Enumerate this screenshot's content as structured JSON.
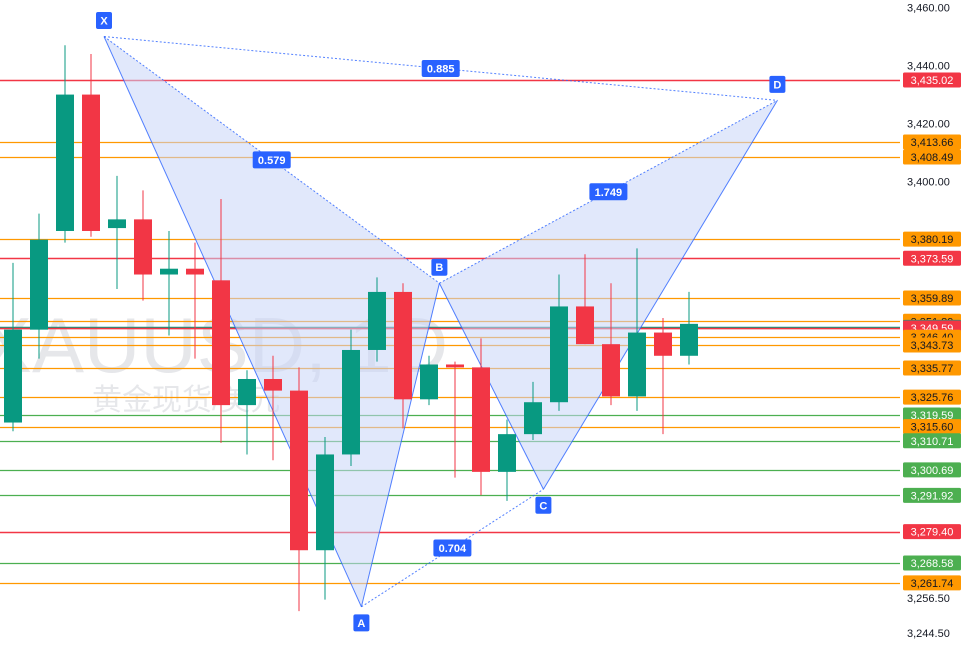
{
  "chart_data": {
    "type": "candlestick",
    "watermark": {
      "symbol": "XAUUSD, 1D",
      "name": "黄金现货/美元"
    },
    "y_axis": {
      "min": 3240,
      "max": 3465,
      "ticks": [
        "3,460.00",
        "3,440.00",
        "3,420.00",
        "3,400.00",
        "3,256.50",
        "3,244.50"
      ],
      "tick_values": [
        3460,
        3440,
        3420,
        3400,
        3256.5,
        3244.5
      ]
    },
    "candles": [
      {
        "o": 3317,
        "h": 3372,
        "l": 3314,
        "c": 3349
      },
      {
        "o": 3349,
        "h": 3389,
        "l": 3339,
        "c": 3380
      },
      {
        "o": 3383,
        "h": 3447,
        "l": 3379,
        "c": 3430
      },
      {
        "o": 3430,
        "h": 3444,
        "l": 3381,
        "c": 3383
      },
      {
        "o": 3384,
        "h": 3402,
        "l": 3363,
        "c": 3387
      },
      {
        "o": 3387,
        "h": 3397,
        "l": 3359,
        "c": 3368
      },
      {
        "o": 3368,
        "h": 3383,
        "l": 3347,
        "c": 3370
      },
      {
        "o": 3370,
        "h": 3379,
        "l": 3339,
        "c": 3368
      },
      {
        "o": 3366,
        "h": 3394,
        "l": 3310,
        "c": 3323
      },
      {
        "o": 3323,
        "h": 3335,
        "l": 3306,
        "c": 3332
      },
      {
        "o": 3332,
        "h": 3340,
        "l": 3304,
        "c": 3328
      },
      {
        "o": 3328,
        "h": 3336,
        "l": 3252,
        "c": 3273
      },
      {
        "o": 3273,
        "h": 3312,
        "l": 3256,
        "c": 3306
      },
      {
        "o": 3306,
        "h": 3349,
        "l": 3302,
        "c": 3342
      },
      {
        "o": 3342,
        "h": 3367,
        "l": 3338,
        "c": 3362
      },
      {
        "o": 3362,
        "h": 3365,
        "l": 3315,
        "c": 3325
      },
      {
        "o": 3325,
        "h": 3340,
        "l": 3323,
        "c": 3337
      },
      {
        "o": 3337,
        "h": 3338,
        "l": 3298,
        "c": 3336
      },
      {
        "o": 3336,
        "h": 3346,
        "l": 3292,
        "c": 3300
      },
      {
        "o": 3300,
        "h": 3318,
        "l": 3290,
        "c": 3313
      },
      {
        "o": 3313,
        "h": 3331,
        "l": 3311,
        "c": 3324
      },
      {
        "o": 3324,
        "h": 3368,
        "l": 3321,
        "c": 3357
      },
      {
        "o": 3357,
        "h": 3375,
        "l": 3344,
        "c": 3344
      },
      {
        "o": 3344,
        "h": 3365,
        "l": 3323,
        "c": 3326
      },
      {
        "o": 3326,
        "h": 3377,
        "l": 3321,
        "c": 3348
      },
      {
        "o": 3348,
        "h": 3353,
        "l": 3313,
        "c": 3340
      },
      {
        "o": 3340,
        "h": 3362,
        "l": 3337,
        "c": 3351
      }
    ],
    "price_lines": [
      {
        "value": 3435.02,
        "label": "3,435.02",
        "color": "#f23645",
        "kind": "red"
      },
      {
        "value": 3413.66,
        "label": "3,413.66",
        "color": "#ff9800",
        "kind": "orange"
      },
      {
        "value": 3408.49,
        "label": "3,408.49",
        "color": "#ff9800",
        "kind": "orange"
      },
      {
        "value": 3380.19,
        "label": "3,380.19",
        "color": "#ff9800",
        "kind": "orange"
      },
      {
        "value": 3373.59,
        "label": "3,373.59",
        "color": "#f23645",
        "kind": "red"
      },
      {
        "value": 3359.89,
        "label": "3,359.89",
        "color": "#ff9800",
        "kind": "orange"
      },
      {
        "value": 3351.89,
        "label": "3,351.89",
        "color": "#ff9800",
        "kind": "orange"
      },
      {
        "value": 3349.78,
        "label": "3,349.78",
        "color": "#089981",
        "kind": "current"
      },
      {
        "value": 3349.59,
        "label": "3,349.59",
        "color": "#f23645",
        "kind": "red"
      },
      {
        "value": 3346.4,
        "label": "3,346.40",
        "color": "#ff9800",
        "kind": "orange"
      },
      {
        "value": 3343.73,
        "label": "3,343.73",
        "color": "#ff9800",
        "kind": "orange"
      },
      {
        "value": 3335.77,
        "label": "3,335.77",
        "color": "#ff9800",
        "kind": "orange"
      },
      {
        "value": 3325.76,
        "label": "3,325.76",
        "color": "#ff9800",
        "kind": "orange"
      },
      {
        "value": 3319.59,
        "label": "3,319.59",
        "color": "#4caf50",
        "kind": "green"
      },
      {
        "value": 3315.6,
        "label": "3,315.60",
        "color": "#ff9800",
        "kind": "orange"
      },
      {
        "value": 3310.71,
        "label": "3,310.71",
        "color": "#4caf50",
        "kind": "green"
      },
      {
        "value": 3300.69,
        "label": "3,300.69",
        "color": "#4caf50",
        "kind": "green"
      },
      {
        "value": 3291.92,
        "label": "3,291.92",
        "color": "#4caf50",
        "kind": "green"
      },
      {
        "value": 3279.4,
        "label": "3,279.40",
        "color": "#f23645",
        "kind": "red"
      },
      {
        "value": 3268.58,
        "label": "3,268.58",
        "color": "#4caf50",
        "kind": "green"
      },
      {
        "value": 3261.74,
        "label": "3,261.74",
        "color": "#ff9800",
        "kind": "orange"
      }
    ],
    "harmonic_pattern": {
      "points": [
        {
          "label": "X",
          "bar": 3.5,
          "price": 3450,
          "pos": "above"
        },
        {
          "label": "A",
          "bar": 13.4,
          "price": 3253.5,
          "pos": "below"
        },
        {
          "label": "B",
          "bar": 16.4,
          "price": 3365,
          "pos": "above"
        },
        {
          "label": "C",
          "bar": 20.4,
          "price": 3294,
          "pos": "below"
        },
        {
          "label": "D",
          "bar": 29.4,
          "price": 3428,
          "pos": "above"
        }
      ],
      "ratios": [
        {
          "label": "0.579",
          "from": "XB"
        },
        {
          "label": "0.885",
          "from": "XD"
        },
        {
          "label": "1.749",
          "from": "BD"
        },
        {
          "label": "0.704",
          "from": "AC"
        }
      ],
      "fill_color": "#c9d6f7",
      "line_color": "#2962ff"
    },
    "colors": {
      "up": "#089981",
      "down": "#f23645",
      "axis_text": "#131722",
      "label_blue": "#2962ff"
    }
  }
}
